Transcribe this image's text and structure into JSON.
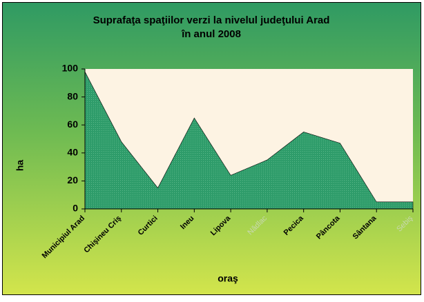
{
  "chart_data": {
    "type": "area",
    "title": [
      "Suprafaţa spaţiilor verzi la nivelul judeţului Arad",
      "în anul 2008"
    ],
    "x_label": "oraş",
    "y_label": "ha",
    "categories": [
      "Municipiul Arad",
      "Chişineu Criş",
      "Curtici",
      "Ineu",
      "Lipova",
      "Nădlac",
      "Pecica",
      "Pâncota",
      "Sântana",
      "Sebiş"
    ],
    "values": [
      98,
      48,
      15,
      65,
      24,
      35,
      55,
      47,
      5,
      5
    ],
    "color": "#2e9c6a",
    "ylim": [
      0,
      100
    ],
    "yticks": [
      0,
      20,
      40,
      60,
      80,
      100
    ]
  }
}
